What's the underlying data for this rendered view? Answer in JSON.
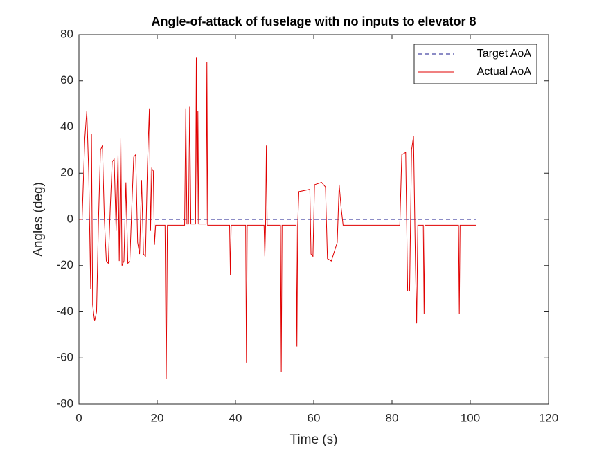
{
  "chart_data": {
    "type": "line",
    "title": "Angle-of-attack of fuselage with no inputs to elevator 8",
    "x_label": "Time (s)",
    "y_label": "Angles (deg)",
    "xlim": [
      0,
      120
    ],
    "xticks": [
      0,
      20,
      40,
      60,
      80,
      100,
      120
    ],
    "ylim": [
      -80,
      80
    ],
    "yticks": [
      -80,
      -60,
      -40,
      -20,
      0,
      20,
      40,
      60,
      80
    ],
    "legend_position": "northeast",
    "series": [
      {
        "name": "Target AoA",
        "color": "#1a1a8c",
        "dashed": true,
        "x": [
          0,
          101.5
        ],
        "values": [
          0,
          0
        ]
      },
      {
        "name": "Actual AoA",
        "color": "#e00000",
        "dashed": false,
        "x": [
          0,
          0.8,
          1.5,
          2,
          2.5,
          3,
          3.2,
          3.5,
          4,
          4.5,
          5,
          5.5,
          6,
          6.5,
          7,
          7.5,
          8,
          8.5,
          9,
          9.5,
          10,
          10.3,
          10.7,
          11,
          11.5,
          12,
          12.5,
          13,
          13.5,
          14,
          14.5,
          15,
          15.5,
          16,
          16.5,
          17,
          17.5,
          18,
          18.3,
          18.6,
          19,
          19.3,
          19.6,
          22,
          22.3,
          22.6,
          27,
          27.3,
          27.6,
          28,
          28.3,
          28.6,
          29.8,
          30,
          30.2,
          30.4,
          30.6,
          32.5,
          32.7,
          32.9,
          38.5,
          38.7,
          38.9,
          42.6,
          42.8,
          43,
          47.3,
          47.5,
          47.7,
          47.9,
          48.1,
          51.5,
          51.7,
          51.9,
          55.5,
          55.7,
          55.9,
          56.2,
          59,
          59.3,
          59.8,
          60.2,
          62,
          63,
          63.5,
          64.5,
          66,
          66.5,
          67,
          67.5,
          82,
          82.5,
          83.5,
          84,
          84.5,
          85,
          85.5,
          86,
          86.3,
          86.6,
          88,
          88.2,
          88.4,
          97,
          97.2,
          97.4,
          101.5
        ],
        "values": [
          0,
          0,
          35,
          47,
          20,
          -30,
          37,
          -37,
          -44,
          -40,
          0,
          30,
          32,
          0,
          -18,
          -19,
          5,
          25,
          26,
          -5,
          28,
          -18,
          35,
          -20,
          -18,
          16,
          -19,
          -18,
          5,
          27,
          28,
          -10,
          -15,
          17,
          -15,
          -16,
          23,
          48,
          -5,
          22,
          21,
          -11,
          -2.5,
          -2.5,
          -69,
          -2.5,
          -2.5,
          48,
          -2,
          -2,
          49,
          -2,
          -2,
          70,
          -2,
          47,
          -2,
          -2,
          68,
          -2.5,
          -2.5,
          -24,
          -2.5,
          -2.5,
          -62,
          -2.5,
          -2.5,
          -16,
          -2.5,
          32,
          -2.5,
          -2.5,
          -66,
          -2.5,
          -2.5,
          -55,
          -2.5,
          12,
          13,
          -15,
          -16,
          15,
          16,
          14,
          -17,
          -18,
          -10,
          15,
          5,
          -2.5,
          -2.5,
          28,
          29,
          -31,
          -31,
          30,
          36,
          -20,
          -45,
          -2.5,
          -2.5,
          -41,
          -2.5,
          -2.5,
          -41,
          -2.5,
          -2.5
        ]
      }
    ]
  }
}
